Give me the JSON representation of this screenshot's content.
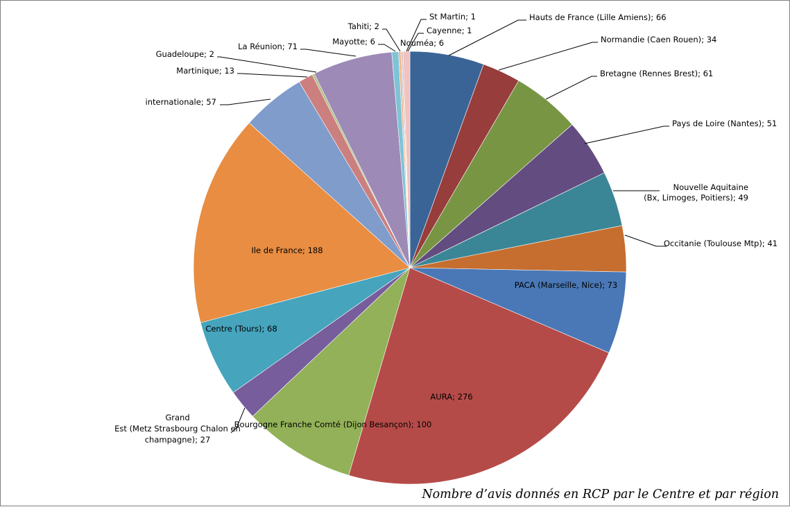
{
  "chart_data": {
    "type": "pie",
    "title": "Nombre d’avis donnés en RCP par le Centre et par région",
    "label_separator": "; ",
    "legend": "none",
    "slices": [
      {
        "label": "Hauts de France (Lille Amiens)",
        "value": 66,
        "color": "#3b6496"
      },
      {
        "label": "Normandie (Caen Rouen)",
        "value": 34,
        "color": "#973d3b"
      },
      {
        "label": "Bretagne (Rennes Brest)",
        "value": 61,
        "color": "#789544"
      },
      {
        "label": "Pays de Loire (Nantes)",
        "value": 51,
        "color": "#634c7f"
      },
      {
        "label": "Nouvelle Aquitaine (Bx, Limoges, Poitiers)",
        "value": 49,
        "color": "#3a8697"
      },
      {
        "label": "Occitanie (Toulouse Mtp)",
        "value": 41,
        "color": "#c56e2f"
      },
      {
        "label": "PACA (Marseille, Nice)",
        "value": 73,
        "color": "#4a78b6"
      },
      {
        "label": "AURA",
        "value": 276,
        "color": "#b54b48"
      },
      {
        "label": "Bourgogne Franche Comté (Dijon Besançon)",
        "value": 100,
        "color": "#92b158"
      },
      {
        "label": "Grand Est (Metz Strasbourg Chalon en champagne)",
        "value": 27,
        "color": "#775d9c"
      },
      {
        "label": "Centre (Tours)",
        "value": 68,
        "color": "#46a4bd"
      },
      {
        "label": "Ile de France",
        "value": 188,
        "color": "#e88d42"
      },
      {
        "label": "internationale",
        "value": 57,
        "color": "#7f9ccb"
      },
      {
        "label": "Martinique",
        "value": 13,
        "color": "#cc7f7f"
      },
      {
        "label": "Guadeloupe",
        "value": 2,
        "color": "#a8c27f"
      },
      {
        "label": "La Réunion",
        "value": 71,
        "color": "#9d8ab6"
      },
      {
        "label": "Mayotte",
        "value": 6,
        "color": "#7fc3d7"
      },
      {
        "label": "Tahiti",
        "value": 2,
        "color": "#f3b583"
      },
      {
        "label": "St Martin",
        "value": 1,
        "color": "#a5b9dc"
      },
      {
        "label": "Cayenne",
        "value": 1,
        "color": "#dba7a5"
      },
      {
        "label": "Nouméa",
        "value": 6,
        "color": "#f0c2c0"
      }
    ]
  }
}
